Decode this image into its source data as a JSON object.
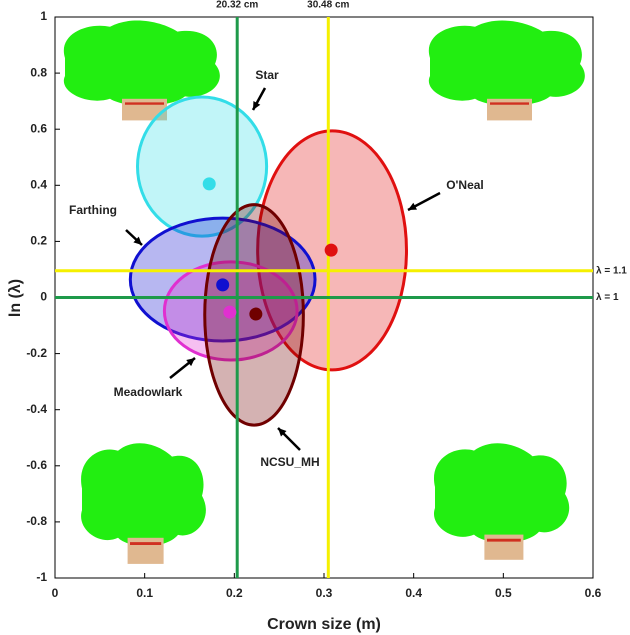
{
  "chart_data": {
    "type": "ellipse",
    "x_label": "Crown size (m)",
    "y_label": "ln (λ)",
    "xlim": [
      0,
      0.6
    ],
    "ylim": [
      -1,
      1
    ],
    "xticks": [
      0,
      0.1,
      0.2,
      0.3,
      0.4,
      0.5,
      0.6
    ],
    "yticks": [
      -1,
      -0.8,
      -0.6,
      -0.4,
      -0.2,
      0,
      0.2,
      0.4,
      0.6,
      0.8,
      1
    ],
    "vlines": [
      {
        "value": 0.2032,
        "label": "20.32 cm",
        "color": "#1e9a4a"
      },
      {
        "value": 0.3048,
        "label": "30.48 cm",
        "color": "#f5f000"
      }
    ],
    "hlines": [
      {
        "value": 0.0953,
        "label": "λ = 1.1",
        "color": "#f5f000"
      },
      {
        "value": 0,
        "label": "λ = 1",
        "color": "#1e9a4a"
      }
    ],
    "series": [
      {
        "name": "Star",
        "color": "#33dde8",
        "x": 0.172,
        "y": 0.405,
        "cx": 0.164,
        "cy": 0.467,
        "rx": 0.072,
        "ry": 0.248
      },
      {
        "name": "O'Neal",
        "color": "#e01010",
        "x": 0.308,
        "y": 0.169,
        "cx": 0.309,
        "cy": 0.168,
        "rx": 0.083,
        "ry": 0.426
      },
      {
        "name": "Farthing",
        "color": "#1010d0",
        "x": 0.187,
        "y": 0.045,
        "cx": 0.187,
        "cy": 0.064,
        "rx": 0.103,
        "ry": 0.219
      },
      {
        "name": "Meadowlark",
        "color": "#e030d0",
        "x": 0.195,
        "y": -0.052,
        "cx": 0.196,
        "cy": -0.048,
        "rx": 0.074,
        "ry": 0.175
      },
      {
        "name": "NCSU_MH",
        "color": "#700000",
        "x": 0.224,
        "y": -0.059,
        "cx": 0.222,
        "cy": -0.062,
        "rx": 0.055,
        "ry": 0.393
      }
    ]
  }
}
